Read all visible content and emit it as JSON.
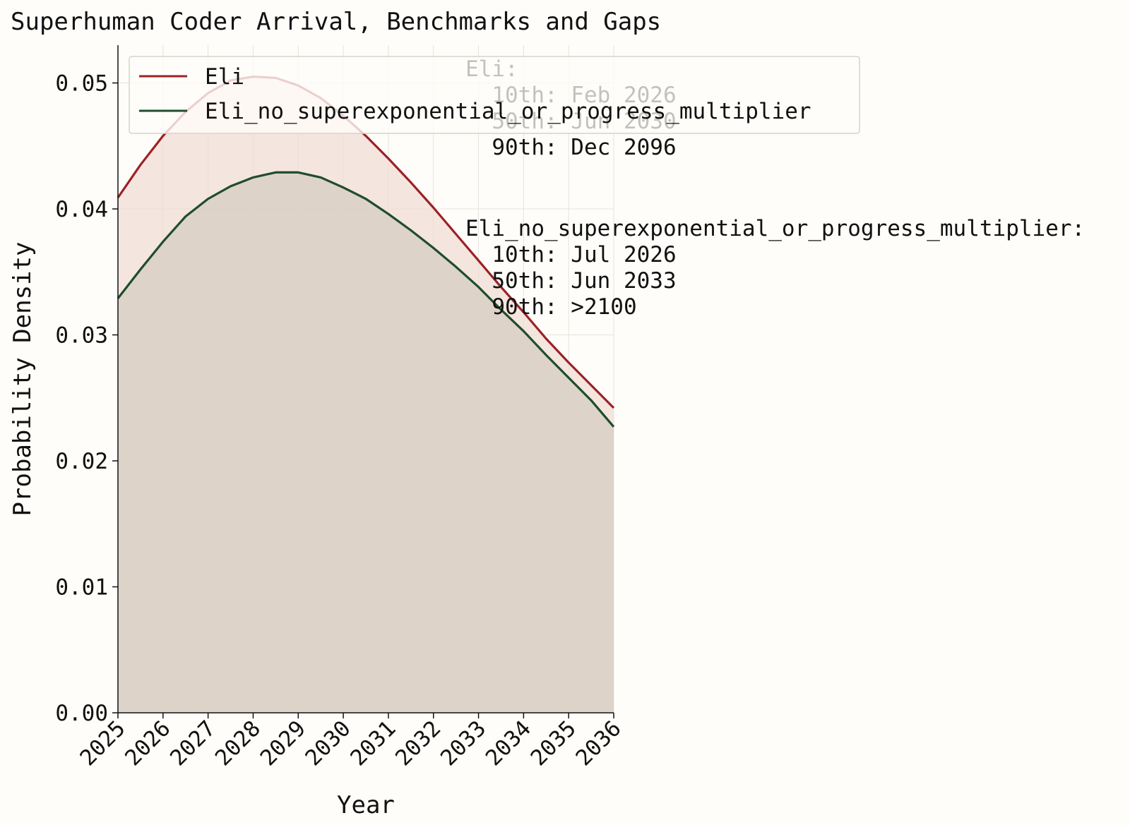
{
  "colors": {
    "background": "#fffdf9",
    "eli": "#9b2226",
    "eli_fill": "#f0dcd6",
    "no_super": "#1f4d2b",
    "no_super_fill": "#d8d0c6",
    "grid": "#e6e3dd"
  },
  "chart_data": {
    "type": "area",
    "title": "Superhuman Coder Arrival, Benchmarks and Gaps",
    "xlabel": "Year",
    "ylabel": "Probability Density",
    "xlim": [
      2025,
      2036
    ],
    "ylim": [
      0,
      0.053
    ],
    "grid": true,
    "legend_placement": "top-center",
    "x_ticks": [
      "2025",
      "2026",
      "2027",
      "2028",
      "2029",
      "2030",
      "2031",
      "2032",
      "2033",
      "2034",
      "2035",
      "2036"
    ],
    "y_ticks": [
      "0.00",
      "0.01",
      "0.02",
      "0.03",
      "0.04",
      "0.05"
    ],
    "x": [
      2025,
      2025.5,
      2026,
      2026.5,
      2027,
      2027.5,
      2028,
      2028.5,
      2029,
      2029.5,
      2030,
      2030.5,
      2031,
      2031.5,
      2032,
      2032.5,
      2033,
      2033.5,
      2034,
      2034.5,
      2035,
      2035.5,
      2036
    ],
    "series": [
      {
        "name": "Eli",
        "color": "#9b2226",
        "values": [
          0.0409,
          0.0435,
          0.0458,
          0.0477,
          0.0492,
          0.0502,
          0.0505,
          0.0504,
          0.0498,
          0.0488,
          0.0474,
          0.0458,
          0.044,
          0.0421,
          0.0401,
          0.038,
          0.0359,
          0.0338,
          0.0318,
          0.0297,
          0.0278,
          0.026,
          0.0242
        ]
      },
      {
        "name": "Eli_no_superexponential_or_progress_multiplier",
        "color": "#1f4d2b",
        "values": [
          0.0329,
          0.0352,
          0.0374,
          0.0394,
          0.0408,
          0.0418,
          0.0425,
          0.0429,
          0.0429,
          0.0425,
          0.0417,
          0.0408,
          0.0396,
          0.0383,
          0.0369,
          0.0354,
          0.0338,
          0.032,
          0.0303,
          0.0284,
          0.0266,
          0.0248,
          0.0227
        ]
      }
    ]
  },
  "annotations": {
    "eli": {
      "header": "Eli:",
      "lines": [
        "  10th: Feb 2026",
        "  50th: Jun 2030",
        "  90th: Dec 2096"
      ]
    },
    "no_super": {
      "header": "Eli_no_superexponential_or_progress_multiplier:",
      "lines": [
        "  10th: Jul 2026",
        "  50th: Jun 2033",
        "  90th: >2100"
      ]
    }
  }
}
